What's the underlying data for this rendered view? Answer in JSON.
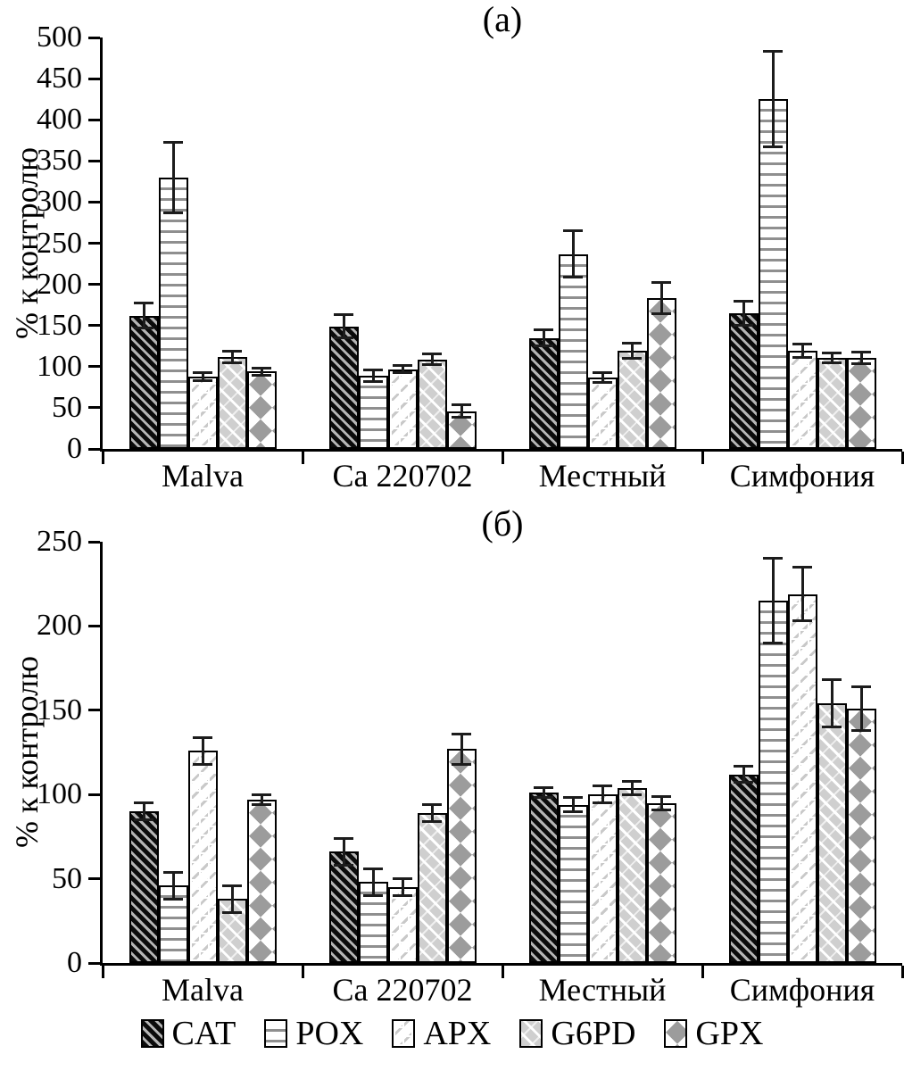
{
  "figure": {
    "background": "#ffffff",
    "axis_color": "#000000",
    "error_bar_color": "#1c1c1c"
  },
  "legend": {
    "position": "bottom",
    "items": [
      {
        "label": "CAT"
      },
      {
        "label": "POX"
      },
      {
        "label": "APX"
      },
      {
        "label": "G6PD"
      },
      {
        "label": "GPX"
      }
    ]
  },
  "chart_data": [
    {
      "type": "bar",
      "title": "(а)",
      "ylabel": "% к контролю",
      "xlabel": "",
      "ylim": [
        0,
        500
      ],
      "ytick_step": 50,
      "grid": false,
      "error_bars": true,
      "categories": [
        "Malva",
        "Ca 220702",
        "Местный",
        "Симфония"
      ],
      "series": [
        {
          "name": "CAT",
          "values": [
            162,
            149,
            135,
            165
          ],
          "errors": [
            15,
            14,
            10,
            15
          ]
        },
        {
          "name": "POX",
          "values": [
            330,
            89,
            237,
            425
          ],
          "errors": [
            43,
            7,
            28,
            58
          ]
        },
        {
          "name": "APX",
          "values": [
            88,
            97,
            87,
            119
          ],
          "errors": [
            5,
            4,
            6,
            8
          ]
        },
        {
          "name": "G6PD",
          "values": [
            112,
            109,
            119,
            111
          ],
          "errors": [
            7,
            7,
            9,
            6
          ]
        },
        {
          "name": "GPX",
          "values": [
            94,
            46,
            183,
            111
          ],
          "errors": [
            4,
            8,
            19,
            7
          ]
        }
      ]
    },
    {
      "type": "bar",
      "title": "(б)",
      "ylabel": "% к контролю",
      "xlabel": "",
      "ylim": [
        0,
        250
      ],
      "ytick_step": 50,
      "grid": false,
      "error_bars": true,
      "categories": [
        "Malva",
        "Ca 220702",
        "Местный",
        "Симфония"
      ],
      "series": [
        {
          "name": "CAT",
          "values": [
            90,
            66,
            101,
            112
          ],
          "errors": [
            5,
            8,
            3,
            5
          ]
        },
        {
          "name": "POX",
          "values": [
            46,
            48,
            94,
            215
          ],
          "errors": [
            8,
            8,
            4,
            25
          ]
        },
        {
          "name": "APX",
          "values": [
            126,
            45,
            100,
            219
          ],
          "errors": [
            8,
            5,
            5,
            16
          ]
        },
        {
          "name": "G6PD",
          "values": [
            38,
            89,
            104,
            154
          ],
          "errors": [
            8,
            5,
            4,
            14
          ]
        },
        {
          "name": "GPX",
          "values": [
            97,
            127,
            95,
            151
          ],
          "errors": [
            3,
            9,
            4,
            13
          ]
        }
      ]
    }
  ]
}
